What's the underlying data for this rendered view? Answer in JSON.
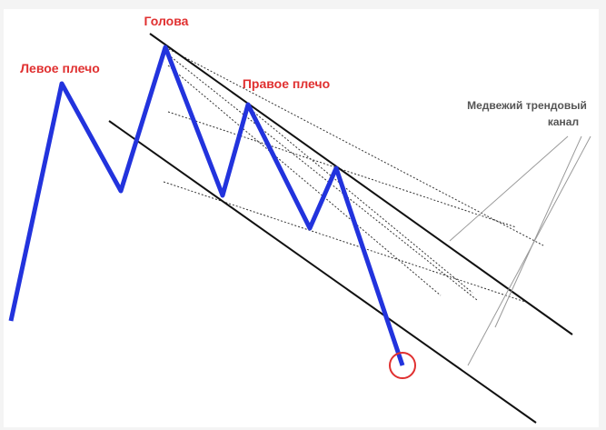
{
  "labels": {
    "head": "Голова",
    "left_shoulder": "Левое плечо",
    "right_shoulder": "Правое плечо",
    "channel": [
      "Медвежий трендовый",
      "канал"
    ]
  }
}
